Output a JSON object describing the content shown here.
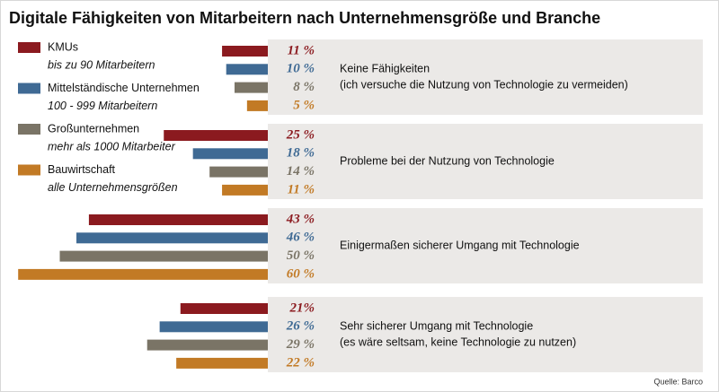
{
  "chart_data": {
    "type": "bar",
    "title": "Digitale Fähigkeiten von Mitarbeitern nach Unternehmensgröße und Branche",
    "source": "Quelle: Barco",
    "categories": [
      "Keine Fähigkeiten",
      "Probleme bei der Nutzung von Technologie",
      "Einigermaßen sicherer Umgang mit Technologie",
      "Sehr sicherer Umgang mit Technologie"
    ],
    "category_subtitles": [
      "(ich versuche die Nutzung von Technologie zu vermeiden)",
      null,
      null,
      "(es wäre seltsam, keine Technologie zu nutzen)"
    ],
    "series": [
      {
        "name": "KMUs",
        "subtitle": "bis zu 90 Mitarbeitern",
        "color": "#8b1a1f",
        "values": [
          11,
          25,
          43,
          21
        ],
        "value_labels": [
          "11 %",
          "25 %",
          "43 %",
          "21%"
        ]
      },
      {
        "name": "Mittelständische Unternehmen",
        "subtitle": "100 - 999 Mitarbeitern",
        "color": "#3f6a94",
        "values": [
          10,
          18,
          46,
          26
        ],
        "value_labels": [
          "10 %",
          "18 %",
          "46 %",
          "26 %"
        ]
      },
      {
        "name": "Großunternehmen",
        "subtitle": "mehr als 1000 Mitarbeiter",
        "color": "#7a7466",
        "values": [
          8,
          14,
          50,
          29
        ],
        "value_labels": [
          "8 %",
          "14 %",
          "50 %",
          "29 %"
        ]
      },
      {
        "name": "Bauwirtschaft",
        "subtitle": "alle Unternehmensgrößen",
        "color": "#c27a25",
        "values": [
          5,
          11,
          60,
          22
        ],
        "value_labels": [
          "5 %",
          "11 %",
          "60 %",
          "22 %"
        ]
      }
    ]
  }
}
